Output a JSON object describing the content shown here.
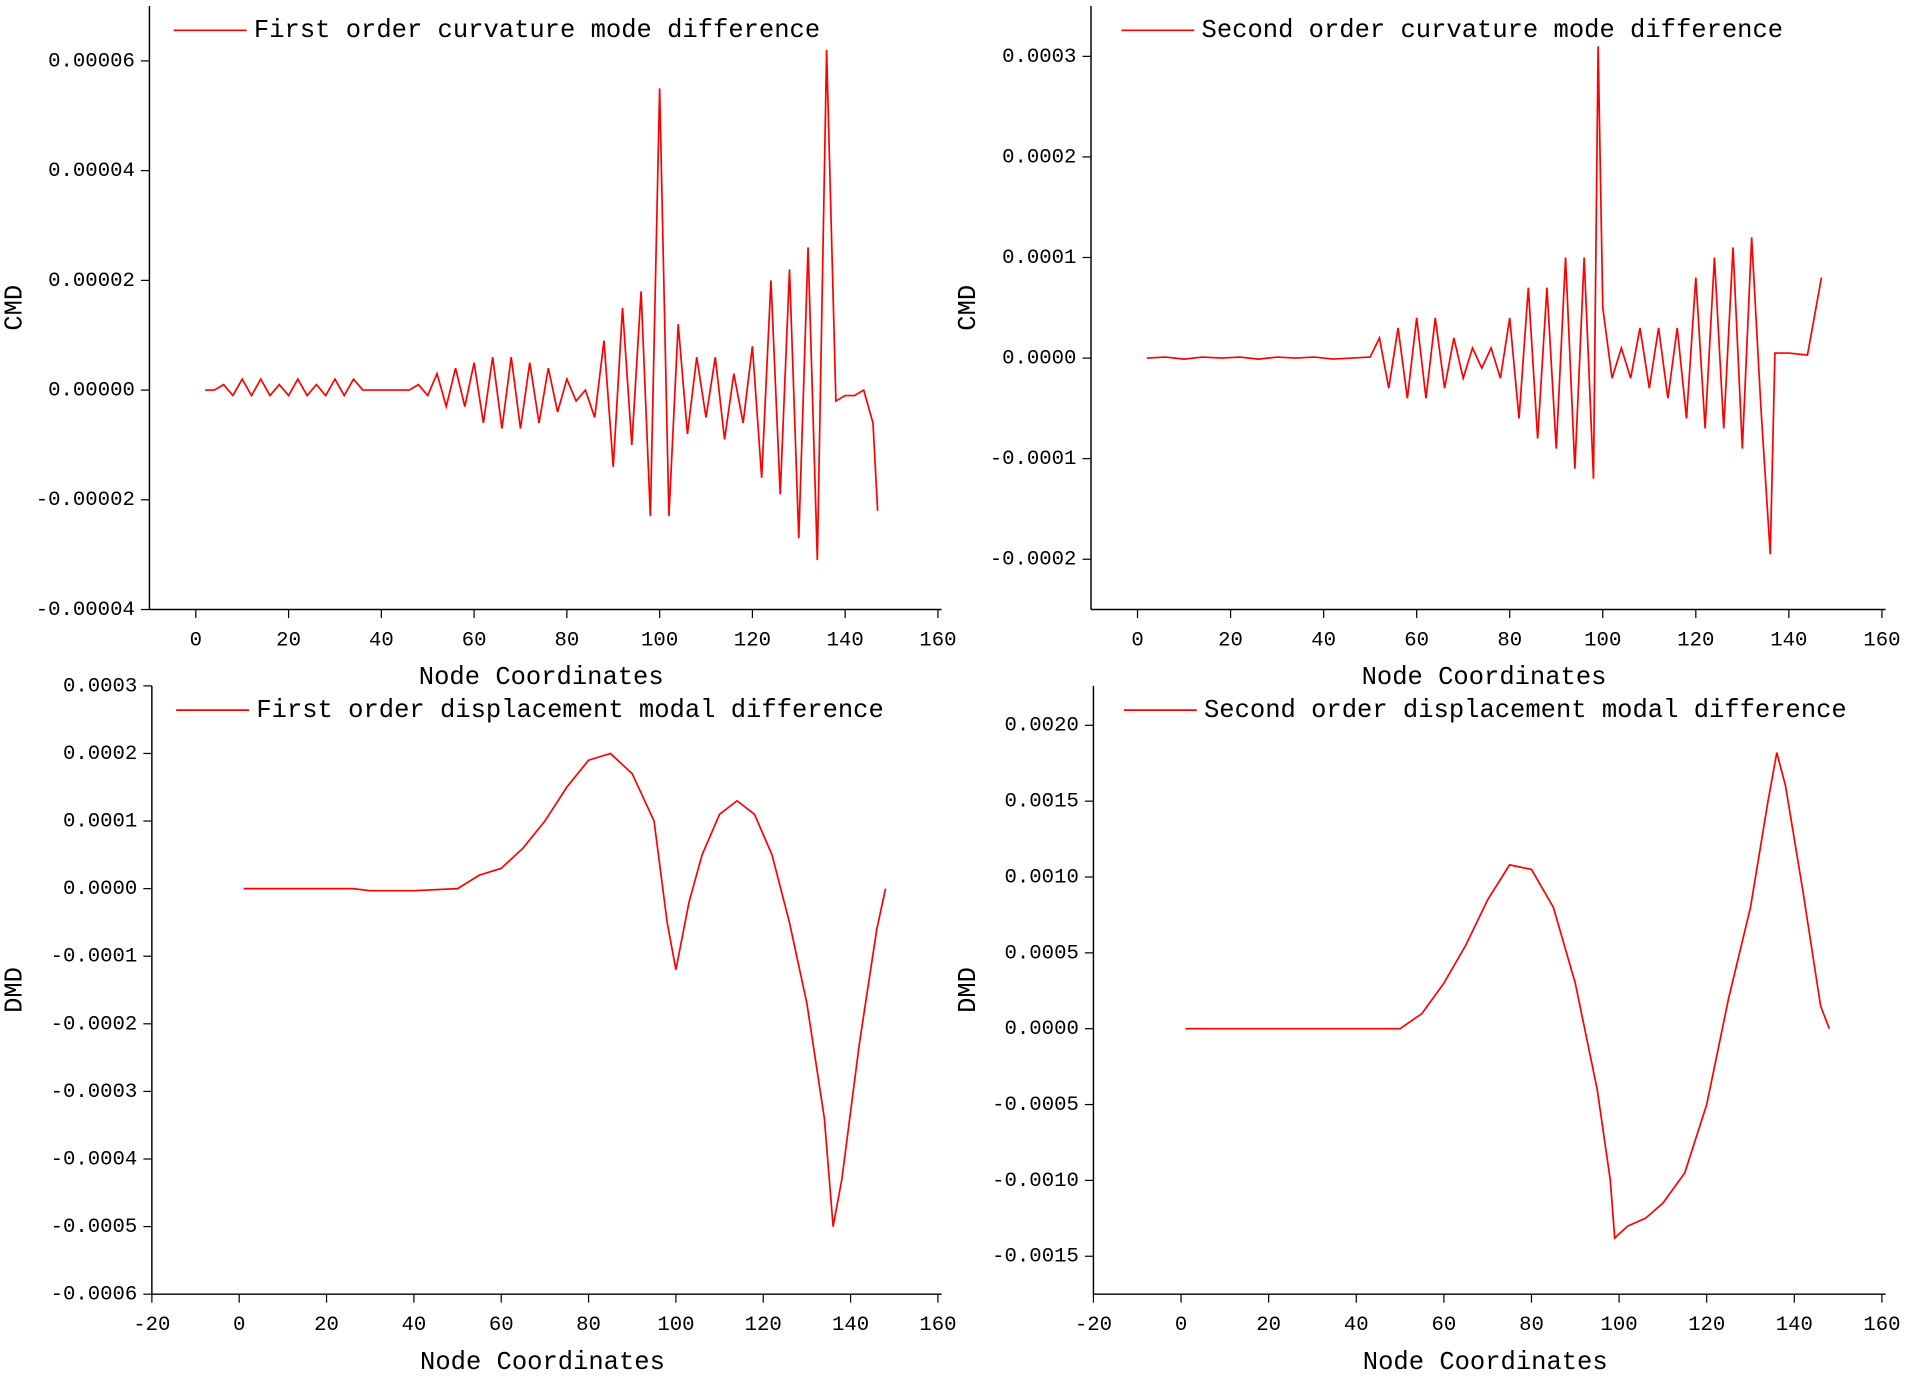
{
  "chart_data": [
    {
      "type": "line",
      "ylabel": "CMD",
      "xlabel": "Node Coordinates",
      "legend": "upper left",
      "xlim": [
        -10,
        160
      ],
      "xticks": [
        0,
        20,
        40,
        60,
        80,
        100,
        120,
        140,
        160
      ],
      "ylim": [
        -4e-05,
        7e-05
      ],
      "yticks": [
        -4e-05,
        -2e-05,
        {
          "value": 0,
          "label": "0.00000"
        },
        2e-05,
        4e-05,
        6e-05
      ],
      "x": [
        2,
        4,
        6,
        8,
        10,
        12,
        14,
        16,
        18,
        20,
        22,
        24,
        26,
        28,
        30,
        32,
        34,
        36,
        38,
        40,
        42,
        44,
        46,
        48,
        50,
        52,
        54,
        56,
        58,
        60,
        62,
        64,
        66,
        68,
        70,
        72,
        74,
        76,
        78,
        80,
        82,
        84,
        86,
        88,
        90,
        92,
        94,
        96,
        98,
        100,
        102,
        104,
        106,
        108,
        110,
        112,
        114,
        116,
        118,
        120,
        122,
        124,
        126,
        128,
        130,
        132,
        134,
        136,
        138,
        140,
        142,
        144,
        146,
        147
      ],
      "series": [
        {
          "name": "First order curvature mode difference",
          "color": "#ff0000",
          "values": [
            0,
            0,
            1e-06,
            -1e-06,
            2e-06,
            -1e-06,
            2e-06,
            -1e-06,
            1e-06,
            -1e-06,
            2e-06,
            -1e-06,
            1e-06,
            -1e-06,
            2e-06,
            -1e-06,
            2e-06,
            0,
            0,
            0,
            0,
            0,
            0,
            1e-06,
            -1e-06,
            3e-06,
            -3e-06,
            4e-06,
            -3e-06,
            5e-06,
            -6e-06,
            6e-06,
            -7e-06,
            6e-06,
            -7e-06,
            5e-06,
            -6e-06,
            4e-06,
            -4e-06,
            2e-06,
            -2e-06,
            0,
            -5e-06,
            9e-06,
            -1.4e-05,
            1.5e-05,
            -1e-05,
            1.8e-05,
            -2.3e-05,
            5.5e-05,
            -2.3e-05,
            1.2e-05,
            -8e-06,
            6e-06,
            -5e-06,
            6e-06,
            -9e-06,
            3e-06,
            -6e-06,
            8e-06,
            -1.6e-05,
            2e-05,
            -1.9e-05,
            2.2e-05,
            -2.7e-05,
            2.6e-05,
            -3.1e-05,
            6.2e-05,
            -2e-06,
            -1e-06,
            -1e-06,
            0,
            -6e-06,
            -2.2e-05
          ]
        }
      ]
    },
    {
      "type": "line",
      "ylabel": "CMD",
      "xlabel": "Node Coordinates",
      "legend": "upper center",
      "xlim": [
        -10,
        160
      ],
      "xticks": [
        0,
        20,
        40,
        60,
        80,
        100,
        120,
        140,
        160
      ],
      "ylim": [
        -0.00025,
        0.00035
      ],
      "yticks": [
        -0.0002,
        -0.0001,
        {
          "value": 0,
          "label": "0.0000"
        },
        0.0001,
        0.0002,
        0.0003
      ],
      "x": [
        2,
        6,
        10,
        14,
        18,
        22,
        26,
        30,
        34,
        38,
        42,
        46,
        50,
        52,
        54,
        56,
        58,
        60,
        62,
        64,
        66,
        68,
        70,
        72,
        74,
        76,
        78,
        80,
        82,
        84,
        86,
        88,
        90,
        92,
        94,
        96,
        98,
        99,
        100,
        102,
        104,
        106,
        108,
        110,
        112,
        114,
        116,
        118,
        120,
        122,
        124,
        126,
        128,
        130,
        132,
        134,
        136,
        137,
        140,
        144,
        147
      ],
      "series": [
        {
          "name": "Second order curvature mode difference",
          "color": "#ff0000",
          "values": [
            0,
            1e-06,
            -1e-06,
            1e-06,
            0,
            1e-06,
            -1e-06,
            1e-06,
            0,
            1e-06,
            -1e-06,
            0,
            1e-06,
            2e-05,
            -3e-05,
            3e-05,
            -4e-05,
            4e-05,
            -4e-05,
            4e-05,
            -3e-05,
            2e-05,
            -2e-05,
            1e-05,
            -1e-05,
            1e-05,
            -2e-05,
            4e-05,
            -6e-05,
            7e-05,
            -8e-05,
            7e-05,
            -9e-05,
            0.0001,
            -0.00011,
            0.0001,
            -0.00012,
            0.00031,
            5e-05,
            -2e-05,
            1e-05,
            -2e-05,
            3e-05,
            -3e-05,
            3e-05,
            -4e-05,
            3e-05,
            -6e-05,
            8e-05,
            -7e-05,
            0.0001,
            -7e-05,
            0.00011,
            -9e-05,
            0.00012,
            -5e-05,
            -0.000195,
            5e-06,
            5e-06,
            3e-06,
            8e-05
          ]
        }
      ]
    },
    {
      "type": "line",
      "ylabel": "DMD",
      "xlabel": "Node Coordinates",
      "legend": "upper left",
      "xlim": [
        -20,
        160
      ],
      "xticks": [
        -20,
        0,
        20,
        40,
        60,
        80,
        100,
        120,
        140,
        160
      ],
      "ylim": [
        -0.0006,
        0.0003
      ],
      "yticks": [
        -0.0006,
        -0.0005,
        -0.0004,
        -0.0003,
        -0.0002,
        -0.0001,
        {
          "value": 0,
          "label": "0.0000"
        },
        0.0001,
        0.0002,
        0.0003
      ],
      "x": [
        1,
        10,
        20,
        26,
        30,
        40,
        50,
        55,
        60,
        65,
        70,
        75,
        80,
        85,
        90,
        95,
        98,
        100,
        103,
        106,
        110,
        114,
        118,
        122,
        126,
        130,
        134,
        136,
        138,
        142,
        146,
        148
      ],
      "series": [
        {
          "name": "First order displacement modal difference",
          "color": "#ff0000",
          "values": [
            0,
            0,
            0,
            0,
            -3e-06,
            -3e-06,
            0,
            2e-05,
            3e-05,
            6e-05,
            0.0001,
            0.00015,
            0.00019,
            0.0002,
            0.00017,
            0.0001,
            -5e-05,
            -0.00012,
            -2e-05,
            5e-05,
            0.00011,
            0.00013,
            0.00011,
            5e-05,
            -5e-05,
            -0.00017,
            -0.00034,
            -0.0005,
            -0.00043,
            -0.00023,
            -6e-05,
            0
          ]
        }
      ]
    },
    {
      "type": "line",
      "ylabel": "DMD",
      "xlabel": "Node Coordinates",
      "legend": "upper center",
      "xlim": [
        -20,
        160
      ],
      "xticks": [
        -20,
        0,
        20,
        40,
        60,
        80,
        100,
        120,
        140,
        160
      ],
      "ylim": [
        -0.00175,
        0.00226
      ],
      "yticks": [
        -0.0015,
        {
          "value": -0.001,
          "label": "-0.0010"
        },
        -0.0005,
        {
          "value": 0,
          "label": "0.0000"
        },
        0.0005,
        {
          "value": 0.001,
          "label": "0.0010"
        },
        0.0015,
        {
          "value": 0.002,
          "label": "0.0020"
        }
      ],
      "x": [
        1,
        10,
        25,
        40,
        50,
        55,
        60,
        65,
        70,
        75,
        80,
        85,
        90,
        95,
        98,
        99,
        102,
        106,
        110,
        115,
        120,
        125,
        130,
        134,
        136,
        138,
        142,
        146,
        148
      ],
      "series": [
        {
          "name": "Second order displacement modal difference",
          "color": "#ff0000",
          "values": [
            0,
            0,
            0,
            0,
            0,
            0.0001,
            0.0003,
            0.00055,
            0.00085,
            0.00108,
            0.00105,
            0.0008,
            0.0003,
            -0.0004,
            -0.001,
            -0.00138,
            -0.0013,
            -0.00125,
            -0.00115,
            -0.00095,
            -0.0005,
            0.0002,
            0.0008,
            0.0015,
            0.00182,
            0.0016,
            0.0009,
            0.00015,
            0
          ]
        }
      ]
    }
  ]
}
